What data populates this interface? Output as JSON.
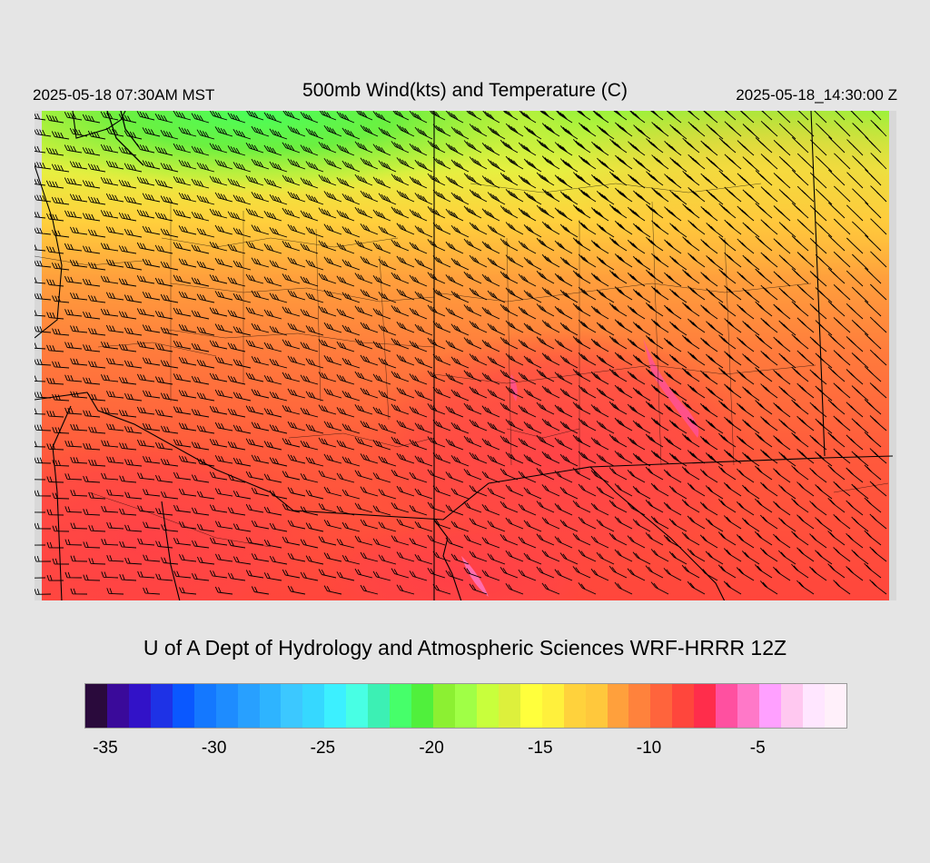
{
  "header": {
    "local_time": "2025-05-18 07:30AM MST",
    "title": "500mb Wind(kts) and Temperature (C)",
    "utc_time": "2025-05-18_14:30:00 Z"
  },
  "credit": "U of A Dept of Hydrology and Atmospheric Sciences WRF-HRRR 12Z",
  "colorbar": {
    "colors": [
      "#2a0a3c",
      "#3a0a9a",
      "#3212c8",
      "#1e32e6",
      "#0a58ff",
      "#1478ff",
      "#1e8cff",
      "#28a0ff",
      "#2eb4ff",
      "#3cc8ff",
      "#36d8ff",
      "#3cf0ff",
      "#48ffe4",
      "#3cf0b4",
      "#46ff6a",
      "#50f03c",
      "#8cf032",
      "#a0ff46",
      "#c8ff3c",
      "#ddf03c",
      "#ffff3c",
      "#fff03c",
      "#ffd23c",
      "#ffc83c",
      "#ffa03c",
      "#ff823c",
      "#ff643c",
      "#ff463c",
      "#ff2d4b",
      "#ff50a0",
      "#ff78c8",
      "#ffa0ff",
      "#ffc8f0",
      "#ffe6ff",
      "#fff0fa"
    ],
    "tick_labels": [
      "-35",
      "-30",
      "-25",
      "-20",
      "-15",
      "-10",
      "-5"
    ]
  }
}
